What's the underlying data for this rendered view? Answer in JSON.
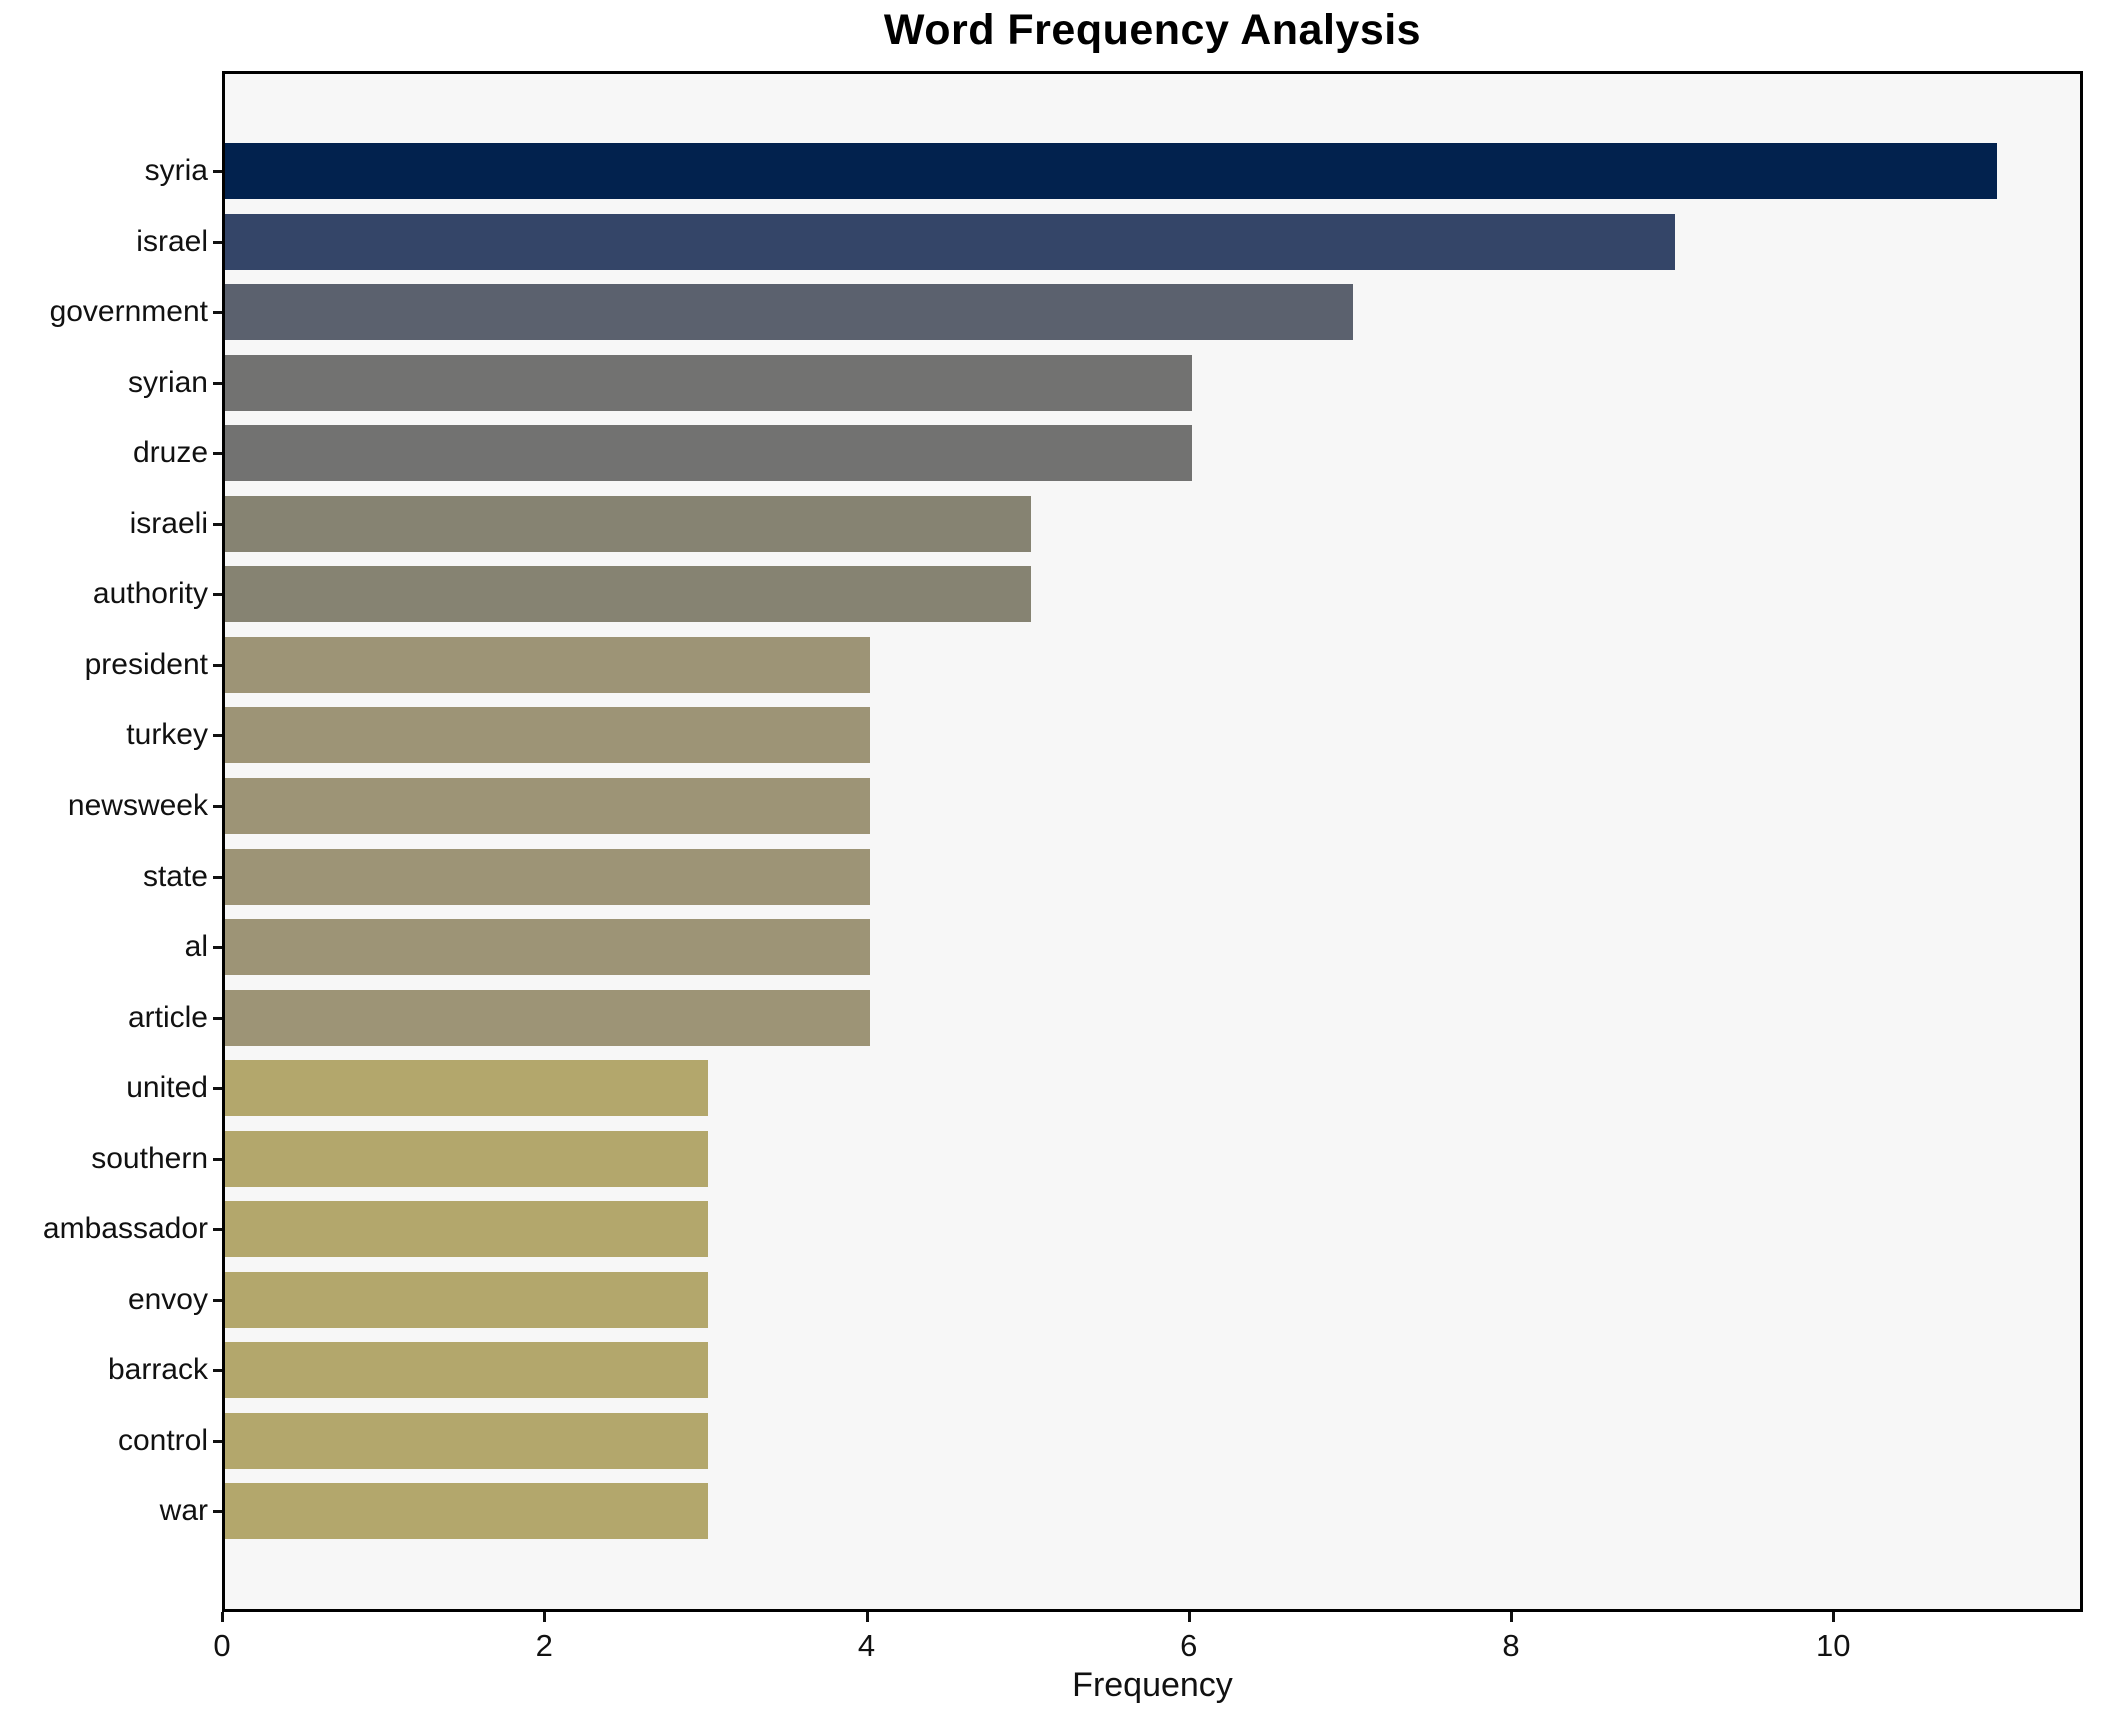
{
  "chart_data": {
    "type": "bar",
    "orientation": "horizontal",
    "title": "Word Frequency Analysis",
    "xlabel": "Frequency",
    "ylabel": "",
    "categories": [
      "syria",
      "israel",
      "government",
      "syrian",
      "druze",
      "israeli",
      "authority",
      "president",
      "turkey",
      "newsweek",
      "state",
      "al",
      "article",
      "united",
      "southern",
      "ambassador",
      "envoy",
      "barrack",
      "control",
      "war"
    ],
    "values": [
      11,
      9,
      7,
      6,
      6,
      5,
      5,
      4,
      4,
      4,
      4,
      4,
      4,
      3,
      3,
      3,
      3,
      3,
      3,
      3
    ],
    "bar_colors": [
      "#02224e",
      "#344568",
      "#5b616e",
      "#727271",
      "#727271",
      "#868372",
      "#868372",
      "#9d9476",
      "#9d9476",
      "#9d9476",
      "#9d9476",
      "#9d9476",
      "#9d9476",
      "#b3a76c",
      "#b3a76c",
      "#b3a76c",
      "#b3a76c",
      "#b3a76c",
      "#b3a76c",
      "#b3a76c"
    ],
    "x_ticks": [
      0,
      2,
      4,
      6,
      8,
      10
    ],
    "xlim": [
      0,
      11.55
    ],
    "grid": false,
    "legend_position": "none",
    "plot_background": "#f7f7f7",
    "figure_background": "#ffffff",
    "spine_color": "#000000"
  }
}
